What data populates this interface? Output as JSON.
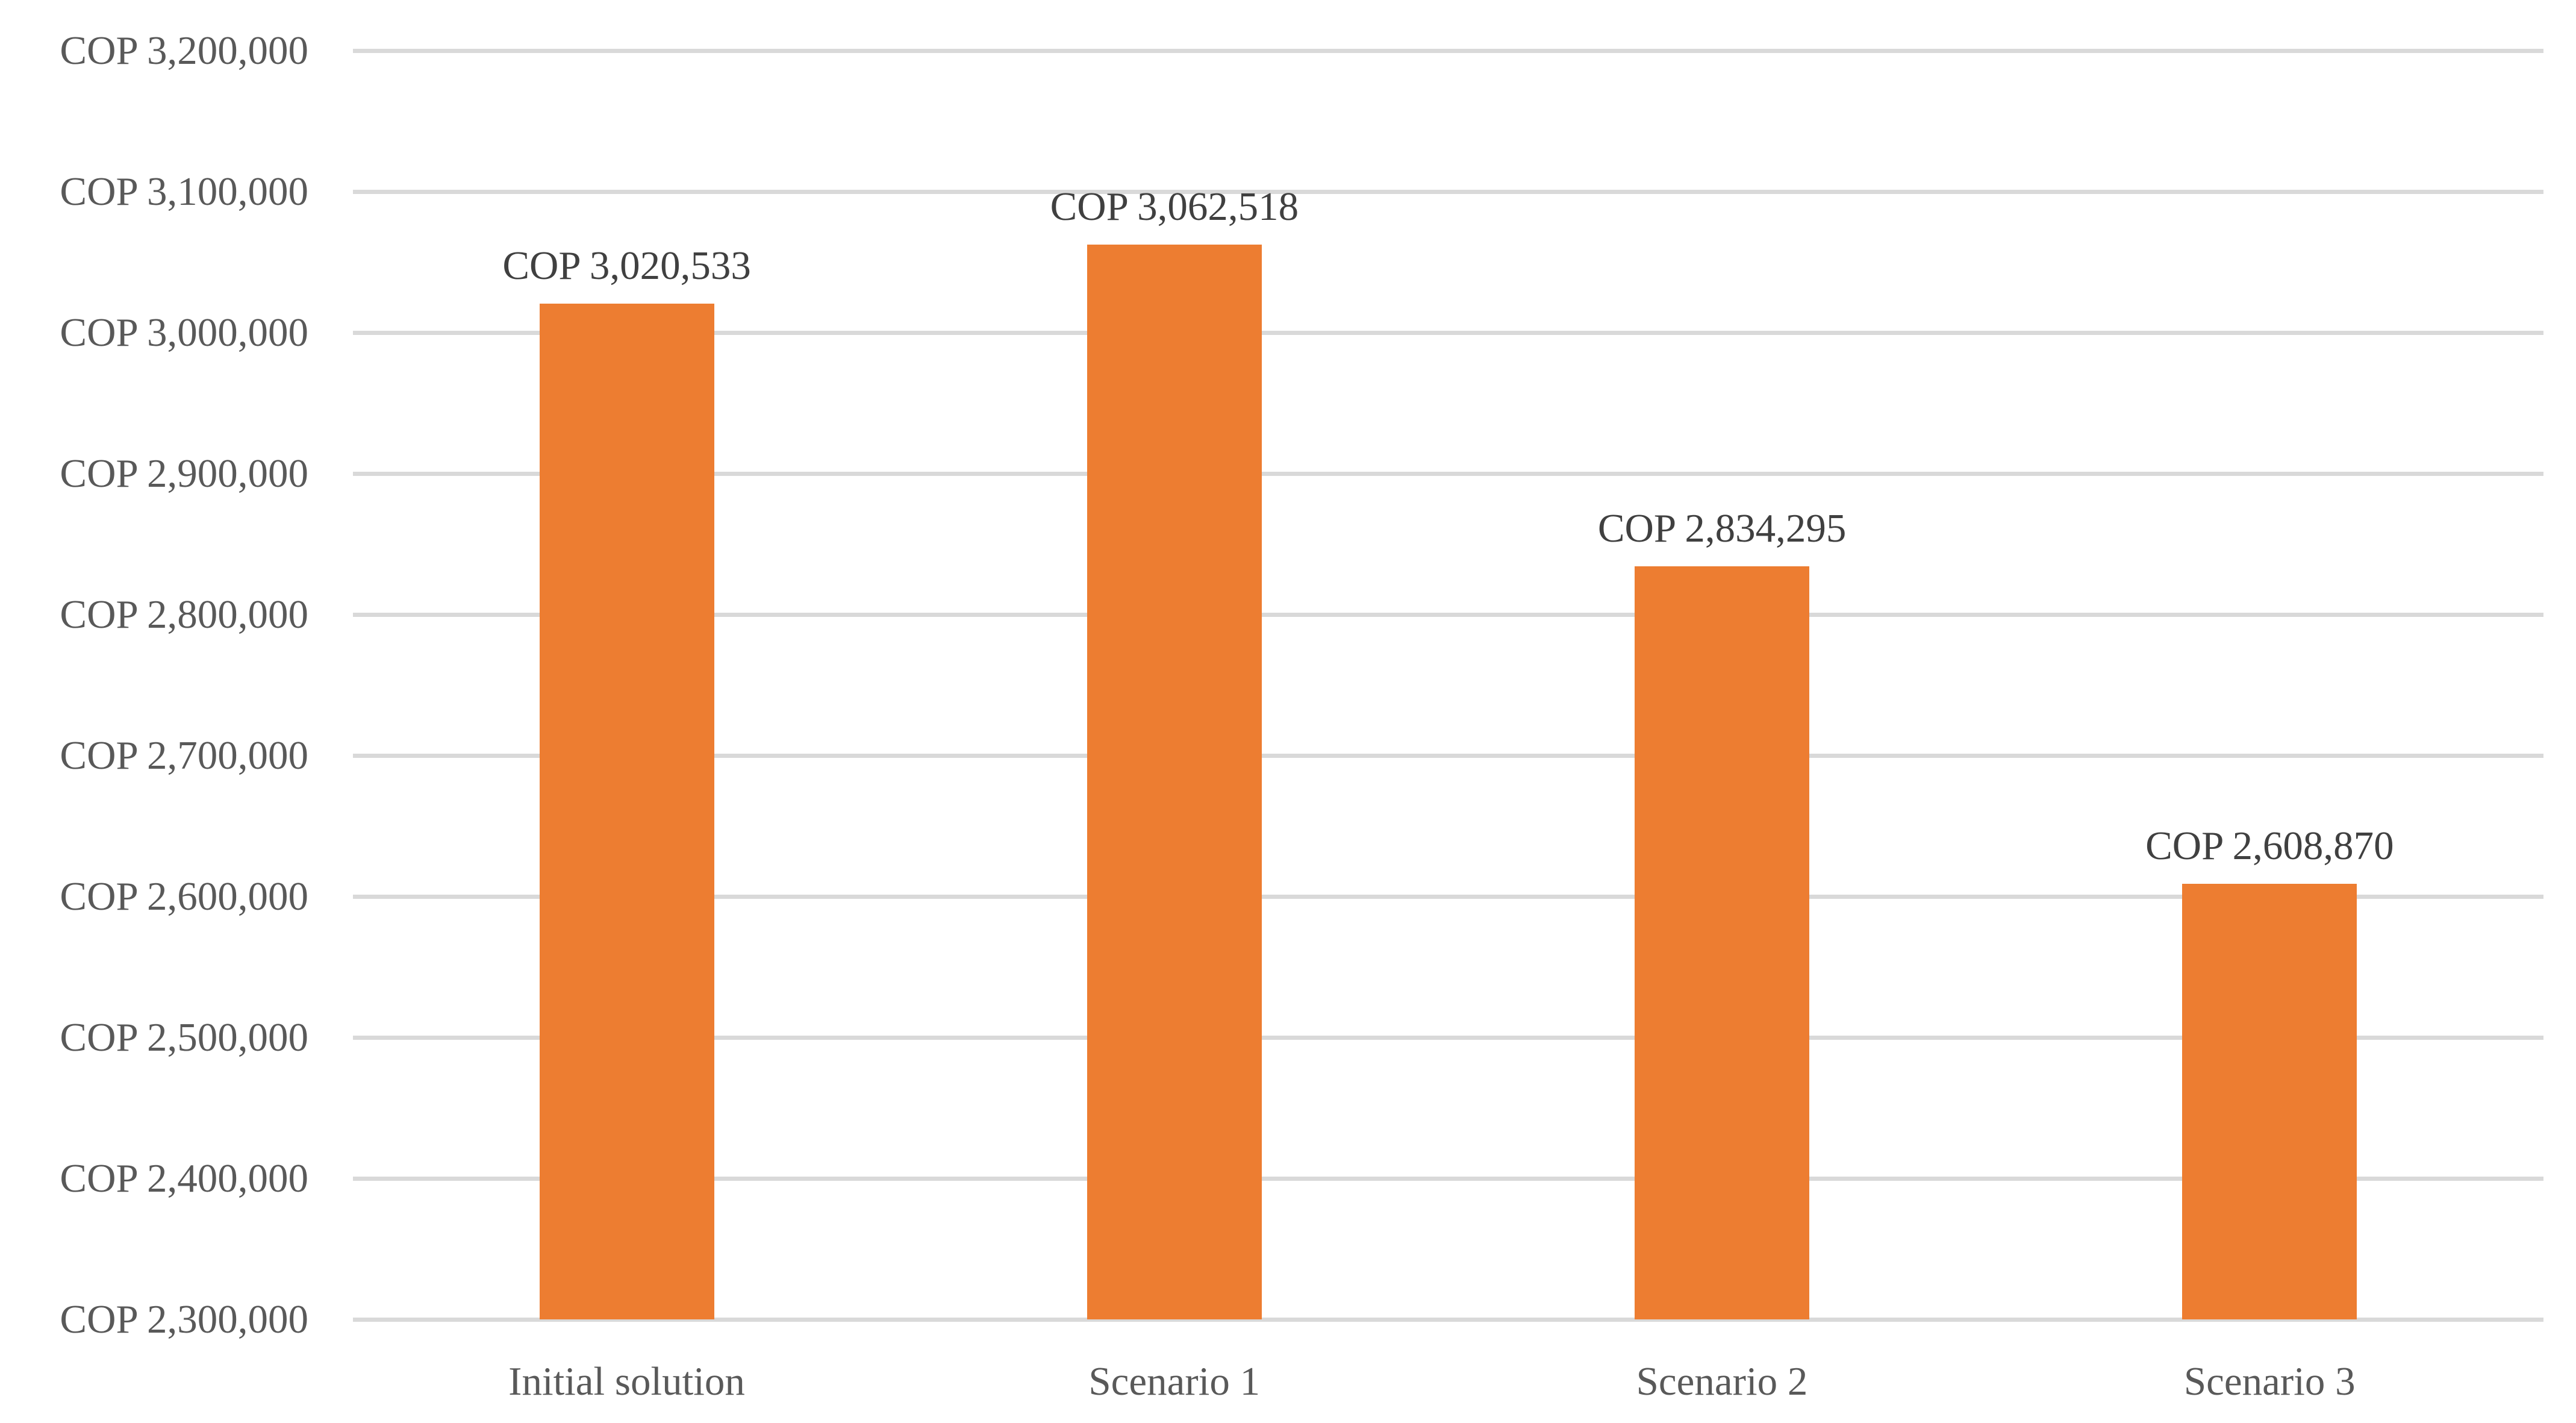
{
  "chart_data": {
    "type": "bar",
    "title": "",
    "xlabel": "",
    "ylabel": "",
    "currency_prefix": "COP",
    "categories": [
      "Initial solution",
      "Scenario 1",
      "Scenario 2",
      "Scenario 3"
    ],
    "values": [
      3020533,
      3062518,
      2834295,
      2608870
    ],
    "data_labels": [
      "COP 3,020,533",
      "COP 3,062,518",
      "COP 2,834,295",
      "COP 2,608,870"
    ],
    "ytick_values": [
      3200000,
      3100000,
      3000000,
      2900000,
      2800000,
      2700000,
      2600000,
      2500000,
      2400000,
      2300000
    ],
    "ytick_labels": [
      "COP 3,200,000",
      "COP 3,100,000",
      "COP 3,000,000",
      "COP 2,900,000",
      "COP 2,800,000",
      "COP 2,700,000",
      "COP 2,600,000",
      "COP 2,500,000",
      "COP 2,400,000",
      "COP 2,300,000"
    ],
    "ylim": [
      2300000,
      3200000
    ],
    "grid": true,
    "legend": false,
    "bar_color": "#ED7D31",
    "gridline_color": "#D9D9D9",
    "axis_label_color": "#595959",
    "data_label_color": "#404040",
    "background_color": "#FFFFFF"
  }
}
